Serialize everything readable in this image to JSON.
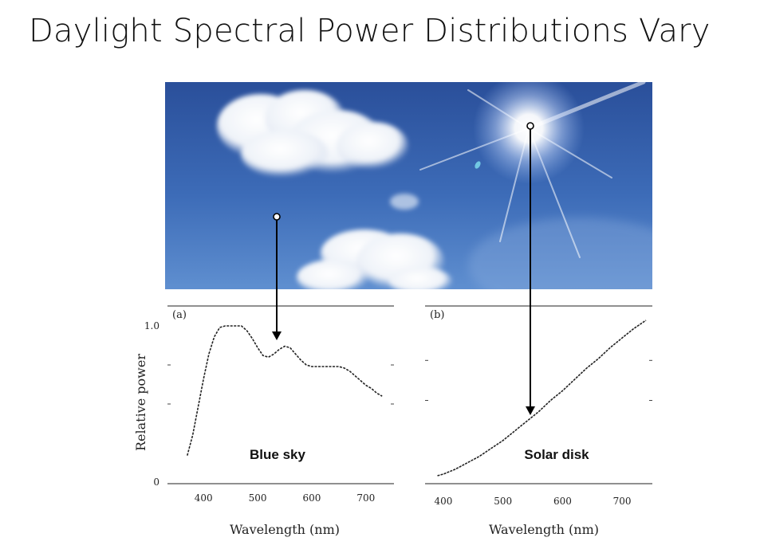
{
  "slide": {
    "title": "Daylight Spectral Power Distributions Vary"
  },
  "chart_data": [
    {
      "type": "line",
      "panel_label": "(a)",
      "annotation": "Blue sky",
      "xlabel": "Wavelength (nm)",
      "ylabel": "Relative power",
      "xlim": [
        360,
        740
      ],
      "ylim": [
        0,
        1.0
      ],
      "xticks": [
        "400",
        "500",
        "600",
        "700"
      ],
      "yticks": [
        "0",
        "1.0"
      ],
      "series": [
        {
          "x": [
            370,
            380,
            390,
            400,
            410,
            420,
            430,
            440,
            450,
            460,
            470,
            480,
            490,
            500,
            510,
            520,
            530,
            540,
            550,
            560,
            570,
            580,
            590,
            600,
            610,
            620,
            630,
            640,
            650,
            660,
            670,
            680,
            690,
            700,
            710,
            720,
            730
          ],
          "values": [
            0.17,
            0.3,
            0.48,
            0.66,
            0.82,
            0.93,
            0.99,
            1.0,
            1.0,
            1.0,
            1.0,
            0.97,
            0.92,
            0.86,
            0.81,
            0.8,
            0.82,
            0.85,
            0.87,
            0.86,
            0.82,
            0.78,
            0.75,
            0.74,
            0.74,
            0.74,
            0.74,
            0.74,
            0.74,
            0.73,
            0.71,
            0.68,
            0.65,
            0.62,
            0.6,
            0.57,
            0.55
          ]
        }
      ]
    },
    {
      "type": "line",
      "panel_label": "(b)",
      "annotation": "Solar disk",
      "xlabel": "Wavelength (nm)",
      "ylabel": "",
      "xlim": [
        380,
        740
      ],
      "ylim": [
        0,
        1.0
      ],
      "xticks": [
        "400",
        "500",
        "600",
        "700"
      ],
      "series": [
        {
          "x": [
            390,
            400,
            420,
            440,
            460,
            480,
            500,
            520,
            540,
            560,
            580,
            600,
            620,
            640,
            660,
            680,
            700,
            720,
            740
          ],
          "values": [
            0.03,
            0.04,
            0.07,
            0.11,
            0.15,
            0.2,
            0.25,
            0.31,
            0.37,
            0.43,
            0.5,
            0.56,
            0.63,
            0.7,
            0.76,
            0.83,
            0.89,
            0.95,
            1.0
          ]
        }
      ]
    }
  ]
}
